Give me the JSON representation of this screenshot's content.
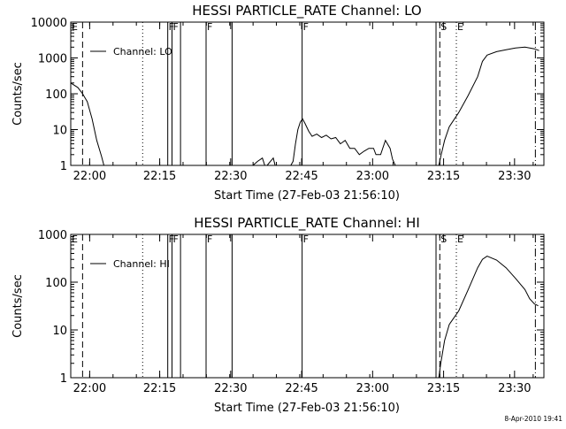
{
  "chart_data": [
    {
      "type": "line",
      "title": "HESSI PARTICLE_RATE Channel: LO",
      "xlabel": "Start Time (27-Feb-03 21:56:10)",
      "ylabel": "Counts/sec",
      "x_unit": "minutes since 21:56:10",
      "xlim": [
        0,
        100
      ],
      "ylim": [
        1,
        10000
      ],
      "yscale": "log",
      "grid": false,
      "legend": "top-left",
      "x_ticks": [
        {
          "x": 4.0,
          "label": "22:00"
        },
        {
          "x": 18.8,
          "label": "22:15"
        },
        {
          "x": 33.8,
          "label": "22:30"
        },
        {
          "x": 48.8,
          "label": "22:45"
        },
        {
          "x": 63.8,
          "label": "23:00"
        },
        {
          "x": 78.8,
          "label": "23:15"
        },
        {
          "x": 93.8,
          "label": "23:30"
        }
      ],
      "y_ticks": [
        {
          "y": 1,
          "label": "1"
        },
        {
          "y": 10,
          "label": "10"
        },
        {
          "y": 100,
          "label": "100"
        },
        {
          "y": 1000,
          "label": "1000"
        },
        {
          "y": 10000,
          "label": "10000"
        }
      ],
      "series": [
        {
          "name": "Channel: LO",
          "segments": [
            [
              [
                0,
                200
              ],
              [
                1.5,
                150
              ],
              [
                2.5,
                100
              ],
              [
                3.5,
                60
              ],
              [
                4.5,
                20
              ],
              [
                5.5,
                5
              ],
              [
                6.5,
                1.8
              ],
              [
                7,
                1
              ]
            ],
            [
              [
                38.5,
                1
              ],
              [
                39.5,
                1.3
              ],
              [
                40.5,
                1.6
              ],
              [
                41,
                1
              ]
            ],
            [
              [
                41.5,
                1
              ],
              [
                42.2,
                1.3
              ],
              [
                42.8,
                1.6
              ],
              [
                43.2,
                1
              ]
            ],
            [
              [
                46.5,
                1
              ],
              [
                47,
                1.3
              ],
              [
                47.5,
                4
              ],
              [
                48,
                10
              ],
              [
                48.5,
                16
              ],
              [
                49,
                20
              ],
              [
                49.5,
                15
              ],
              [
                50.3,
                9
              ],
              [
                51,
                6.5
              ],
              [
                52,
                7.5
              ],
              [
                53,
                6
              ],
              [
                54,
                7
              ],
              [
                55,
                5.5
              ],
              [
                56,
                6
              ],
              [
                57,
                4
              ],
              [
                58,
                5
              ],
              [
                59,
                3
              ],
              [
                60,
                3
              ],
              [
                61,
                2
              ],
              [
                62,
                2.5
              ],
              [
                63,
                3
              ],
              [
                64,
                3
              ],
              [
                64.5,
                2
              ],
              [
                65.5,
                2
              ],
              [
                66.5,
                5
              ],
              [
                67.5,
                3
              ],
              [
                68,
                1.5
              ],
              [
                68.6,
                1
              ]
            ],
            [
              [
                77.8,
                1
              ],
              [
                78.3,
                2
              ],
              [
                79,
                5
              ],
              [
                80,
                12
              ],
              [
                82,
                30
              ],
              [
                84,
                90
              ],
              [
                86,
                300
              ],
              [
                87,
                800
              ],
              [
                88,
                1200
              ],
              [
                90,
                1500
              ],
              [
                92,
                1700
              ],
              [
                94,
                1900
              ],
              [
                96,
                2000
              ],
              [
                98,
                1800
              ],
              [
                99,
                1600
              ]
            ]
          ]
        }
      ],
      "markers": [
        {
          "label": "E",
          "x": 0,
          "style": "none"
        },
        {
          "label": "",
          "x": 2.5,
          "style": "dashed"
        },
        {
          "label": "",
          "x": 15.2,
          "style": "dotted"
        },
        {
          "label": "F",
          "x": 20.5,
          "style": "solid"
        },
        {
          "label": "F",
          "x": 21.4,
          "style": "solid"
        },
        {
          "label": "",
          "x": 23.2,
          "style": "solid"
        },
        {
          "label": "F",
          "x": 28.6,
          "style": "solid"
        },
        {
          "label": "",
          "x": 34.1,
          "style": "solid"
        },
        {
          "label": "F",
          "x": 48.9,
          "style": "solid"
        },
        {
          "label": "",
          "x": 77.2,
          "style": "solid"
        },
        {
          "label": "S",
          "x": 78.0,
          "style": "dashed"
        },
        {
          "label": "E",
          "x": 81.5,
          "style": "dotted"
        },
        {
          "label": "",
          "x": 98.2,
          "style": "dashdot"
        }
      ]
    },
    {
      "type": "line",
      "title": "HESSI PARTICLE_RATE Channel: HI",
      "xlabel": "Start Time (27-Feb-03 21:56:10)",
      "ylabel": "Counts/sec",
      "x_unit": "minutes since 21:56:10",
      "xlim": [
        0,
        100
      ],
      "ylim": [
        1,
        1000
      ],
      "yscale": "log",
      "grid": false,
      "legend": "top-left",
      "x_ticks": [
        {
          "x": 4.0,
          "label": "22:00"
        },
        {
          "x": 18.8,
          "label": "22:15"
        },
        {
          "x": 33.8,
          "label": "22:30"
        },
        {
          "x": 48.8,
          "label": "22:45"
        },
        {
          "x": 63.8,
          "label": "23:00"
        },
        {
          "x": 78.8,
          "label": "23:15"
        },
        {
          "x": 93.8,
          "label": "23:30"
        }
      ],
      "y_ticks": [
        {
          "y": 1,
          "label": "1"
        },
        {
          "y": 10,
          "label": "10"
        },
        {
          "y": 100,
          "label": "100"
        },
        {
          "y": 1000,
          "label": "1000"
        }
      ],
      "series": [
        {
          "name": "Channel: HI",
          "segments": [
            [
              [
                77.8,
                1
              ],
              [
                78.2,
                2
              ],
              [
                79,
                6
              ],
              [
                80,
                13
              ],
              [
                82,
                25
              ],
              [
                84,
                70
              ],
              [
                86,
                200
              ],
              [
                87,
                300
              ],
              [
                88,
                350
              ],
              [
                90,
                290
              ],
              [
                92,
                200
              ],
              [
                94,
                120
              ],
              [
                96,
                70
              ],
              [
                97,
                45
              ],
              [
                98,
                35
              ],
              [
                98.8,
                32
              ]
            ]
          ]
        }
      ],
      "markers": [
        {
          "label": "E",
          "x": 0,
          "style": "none"
        },
        {
          "label": "",
          "x": 2.5,
          "style": "dashed"
        },
        {
          "label": "",
          "x": 15.2,
          "style": "dotted"
        },
        {
          "label": "F",
          "x": 20.5,
          "style": "solid"
        },
        {
          "label": "F",
          "x": 21.4,
          "style": "solid"
        },
        {
          "label": "",
          "x": 23.2,
          "style": "solid"
        },
        {
          "label": "F",
          "x": 28.6,
          "style": "solid"
        },
        {
          "label": "",
          "x": 34.1,
          "style": "solid"
        },
        {
          "label": "F",
          "x": 48.9,
          "style": "solid"
        },
        {
          "label": "",
          "x": 77.2,
          "style": "solid"
        },
        {
          "label": "S",
          "x": 78.0,
          "style": "dashed"
        },
        {
          "label": "E",
          "x": 81.5,
          "style": "dotted"
        },
        {
          "label": "",
          "x": 98.2,
          "style": "dashdot"
        }
      ]
    }
  ],
  "footer": {
    "timestamp": "8-Apr-2010 19:41"
  }
}
